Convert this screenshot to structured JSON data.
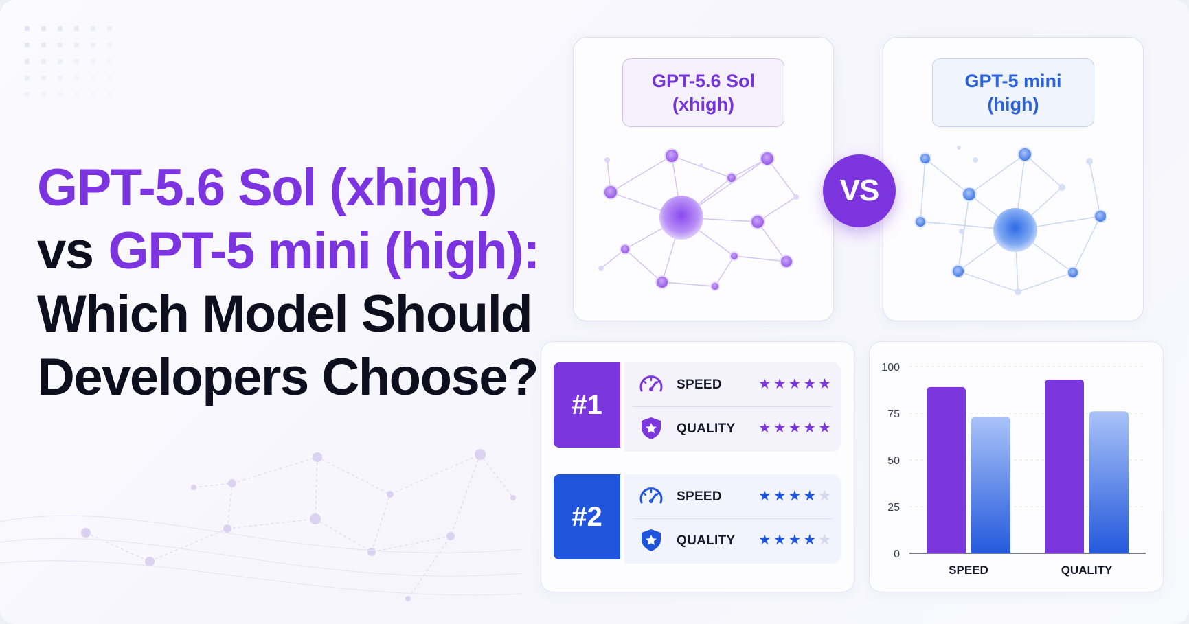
{
  "headline": {
    "line1": "GPT-5.6 Sol (xhigh)",
    "line2_prefix": "vs",
    "line2_accent": "GPT-5 mini (high):",
    "line3": "Which Model Should",
    "line4": "Developers Choose?"
  },
  "models": {
    "sol": {
      "line1": "GPT-5.6 Sol",
      "line2": "(xhigh)"
    },
    "mini": {
      "line1": "GPT-5 mini",
      "line2": "(high)"
    }
  },
  "vs_label": "VS",
  "colors": {
    "purple": "#7b36de",
    "blue": "#1f55dc",
    "light_blue_bar": "#8fb0f4",
    "text_dark": "#0d0f1e"
  },
  "rankings": [
    {
      "rank": "#1",
      "color": "#7b36de",
      "rows": [
        {
          "icon": "speedometer-icon",
          "label": "SPEED",
          "stars": 5
        },
        {
          "icon": "shield-star-icon",
          "label": "QUALITY",
          "stars": 5
        }
      ]
    },
    {
      "rank": "#2",
      "color": "#1f55dc",
      "rows": [
        {
          "icon": "speedometer-icon",
          "label": "SPEED",
          "stars": 4
        },
        {
          "icon": "shield-star-icon",
          "label": "QUALITY",
          "stars": 4
        }
      ]
    }
  ],
  "chart_data": {
    "type": "bar",
    "categories": [
      "SPEED",
      "QUALITY"
    ],
    "series": [
      {
        "values": [
          89,
          93
        ],
        "color": "#7b36de"
      },
      {
        "values": [
          73,
          76
        ],
        "color": "#8fb0f4"
      }
    ],
    "yticks": [
      0,
      25,
      50,
      75,
      100
    ],
    "ylim": [
      0,
      100
    ],
    "grid": true,
    "title": "",
    "xlabel": "",
    "ylabel": ""
  }
}
